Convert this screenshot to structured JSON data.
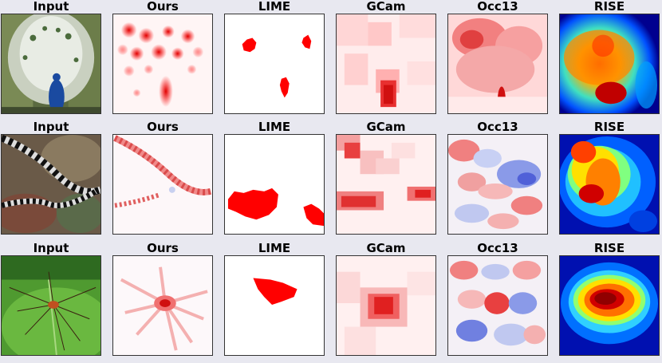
{
  "columns": [
    "Input",
    "Ours",
    "LIME",
    "GCam",
    "Occ13",
    "RISE"
  ],
  "rows": [
    {
      "subject": "peacock"
    },
    {
      "subject": "sea snake"
    },
    {
      "subject": "harvestman spider on leaf"
    }
  ],
  "colors": {
    "heat_red": "#e00000",
    "heat_blue": "#3050e0",
    "rise_low": "#00008f",
    "rise_high": "#b00000"
  }
}
